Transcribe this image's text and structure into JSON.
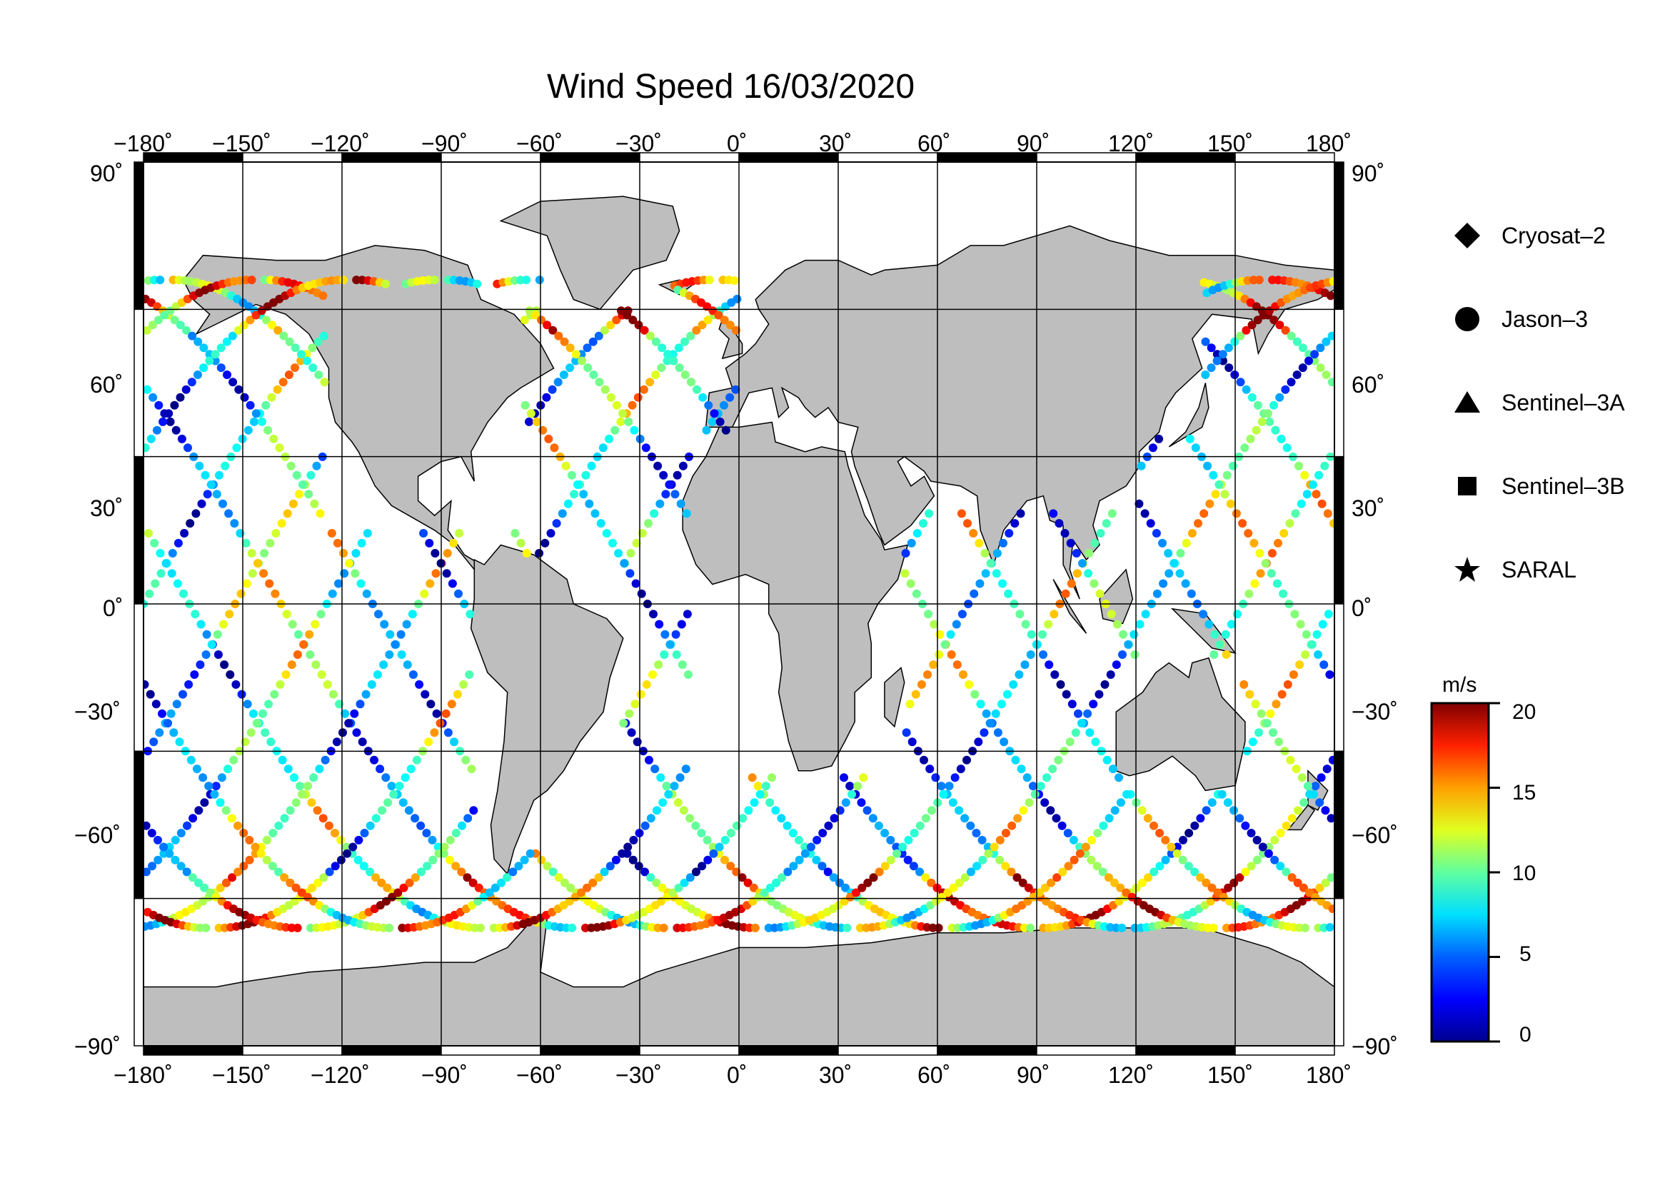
{
  "title": "Wind Speed 16/03/2020",
  "map": {
    "lon_range": [
      -180,
      180
    ],
    "lat_range": [
      -90,
      90
    ],
    "lon_ticks": [
      "−180˚",
      "−150˚",
      "−120˚",
      "−90˚",
      "−60˚",
      "−30˚",
      "0˚",
      "30˚",
      "60˚",
      "90˚",
      "120˚",
      "150˚",
      "180˚"
    ],
    "lat_ticks": [
      "90˚",
      "60˚",
      "30˚",
      "0˚",
      "−30˚",
      "−60˚",
      "−90˚"
    ],
    "grid": true,
    "land_color": "#bebebe",
    "ocean_color": "#ffffff"
  },
  "legend": {
    "placement": "right",
    "items": [
      {
        "label": "Cryosat–2",
        "icon": "diamond-icon"
      },
      {
        "label": "Jason–3",
        "icon": "circle-icon"
      },
      {
        "label": "Sentinel–3A",
        "icon": "triangle-icon"
      },
      {
        "label": "Sentinel–3B",
        "icon": "square-icon"
      },
      {
        "label": "SARAL",
        "icon": "star-icon"
      }
    ]
  },
  "colorbar": {
    "unit": "m/s",
    "min": 0,
    "max": 20,
    "tick_labels": [
      "20",
      "15",
      "10",
      "5",
      "0"
    ],
    "colormap": "jet",
    "colors": [
      "#00008f",
      "#0000ff",
      "#0080ff",
      "#00ffff",
      "#80ff80",
      "#ffff00",
      "#ff8000",
      "#ff0000",
      "#800000"
    ]
  }
}
